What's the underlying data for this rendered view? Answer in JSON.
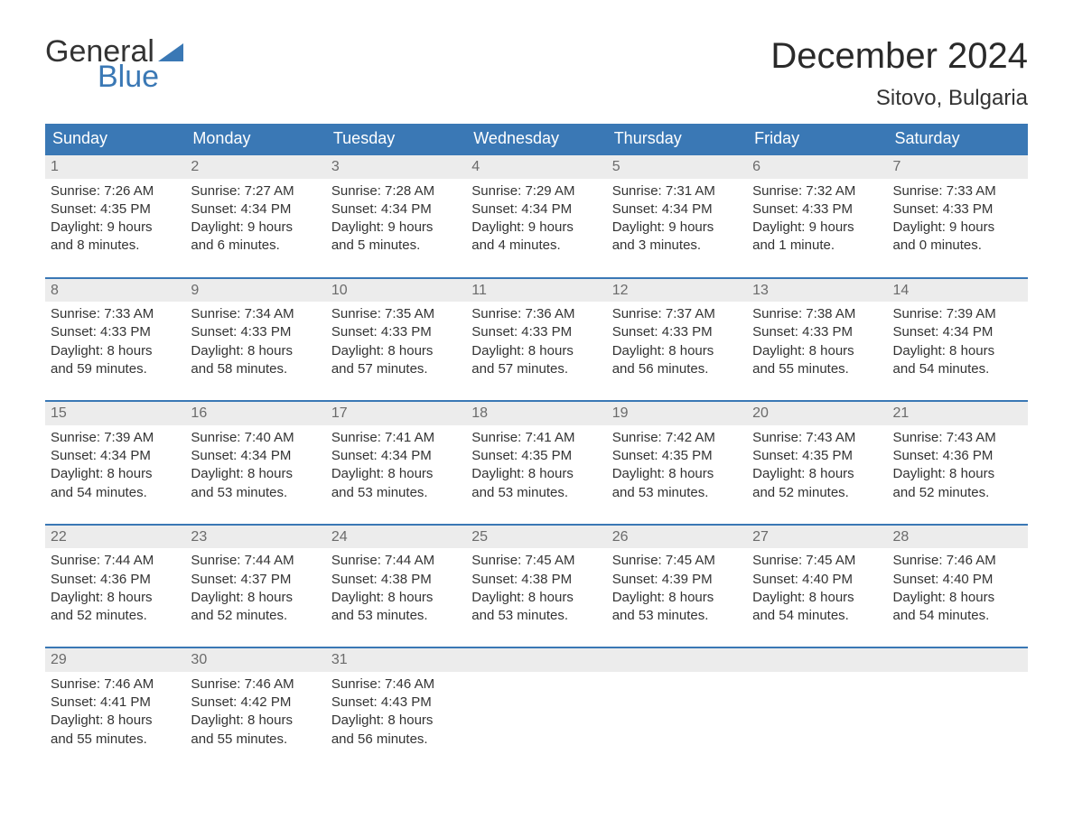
{
  "brand": {
    "word1": "General",
    "word2": "Blue",
    "triangle_color": "#3a78b5"
  },
  "title": "December 2024",
  "location": "Sitovo, Bulgaria",
  "colors": {
    "header_bg": "#3a78b5",
    "header_text": "#ffffff",
    "daynum_bg": "#ececec",
    "daynum_text": "#6b6b6b",
    "body_text": "#333333",
    "week_border": "#3a78b5"
  },
  "day_headers": [
    "Sunday",
    "Monday",
    "Tuesday",
    "Wednesday",
    "Thursday",
    "Friday",
    "Saturday"
  ],
  "weeks": [
    [
      {
        "n": "1",
        "sunrise": "Sunrise: 7:26 AM",
        "sunset": "Sunset: 4:35 PM",
        "d1": "Daylight: 9 hours",
        "d2": "and 8 minutes."
      },
      {
        "n": "2",
        "sunrise": "Sunrise: 7:27 AM",
        "sunset": "Sunset: 4:34 PM",
        "d1": "Daylight: 9 hours",
        "d2": "and 6 minutes."
      },
      {
        "n": "3",
        "sunrise": "Sunrise: 7:28 AM",
        "sunset": "Sunset: 4:34 PM",
        "d1": "Daylight: 9 hours",
        "d2": "and 5 minutes."
      },
      {
        "n": "4",
        "sunrise": "Sunrise: 7:29 AM",
        "sunset": "Sunset: 4:34 PM",
        "d1": "Daylight: 9 hours",
        "d2": "and 4 minutes."
      },
      {
        "n": "5",
        "sunrise": "Sunrise: 7:31 AM",
        "sunset": "Sunset: 4:34 PM",
        "d1": "Daylight: 9 hours",
        "d2": "and 3 minutes."
      },
      {
        "n": "6",
        "sunrise": "Sunrise: 7:32 AM",
        "sunset": "Sunset: 4:33 PM",
        "d1": "Daylight: 9 hours",
        "d2": "and 1 minute."
      },
      {
        "n": "7",
        "sunrise": "Sunrise: 7:33 AM",
        "sunset": "Sunset: 4:33 PM",
        "d1": "Daylight: 9 hours",
        "d2": "and 0 minutes."
      }
    ],
    [
      {
        "n": "8",
        "sunrise": "Sunrise: 7:33 AM",
        "sunset": "Sunset: 4:33 PM",
        "d1": "Daylight: 8 hours",
        "d2": "and 59 minutes."
      },
      {
        "n": "9",
        "sunrise": "Sunrise: 7:34 AM",
        "sunset": "Sunset: 4:33 PM",
        "d1": "Daylight: 8 hours",
        "d2": "and 58 minutes."
      },
      {
        "n": "10",
        "sunrise": "Sunrise: 7:35 AM",
        "sunset": "Sunset: 4:33 PM",
        "d1": "Daylight: 8 hours",
        "d2": "and 57 minutes."
      },
      {
        "n": "11",
        "sunrise": "Sunrise: 7:36 AM",
        "sunset": "Sunset: 4:33 PM",
        "d1": "Daylight: 8 hours",
        "d2": "and 57 minutes."
      },
      {
        "n": "12",
        "sunrise": "Sunrise: 7:37 AM",
        "sunset": "Sunset: 4:33 PM",
        "d1": "Daylight: 8 hours",
        "d2": "and 56 minutes."
      },
      {
        "n": "13",
        "sunrise": "Sunrise: 7:38 AM",
        "sunset": "Sunset: 4:33 PM",
        "d1": "Daylight: 8 hours",
        "d2": "and 55 minutes."
      },
      {
        "n": "14",
        "sunrise": "Sunrise: 7:39 AM",
        "sunset": "Sunset: 4:34 PM",
        "d1": "Daylight: 8 hours",
        "d2": "and 54 minutes."
      }
    ],
    [
      {
        "n": "15",
        "sunrise": "Sunrise: 7:39 AM",
        "sunset": "Sunset: 4:34 PM",
        "d1": "Daylight: 8 hours",
        "d2": "and 54 minutes."
      },
      {
        "n": "16",
        "sunrise": "Sunrise: 7:40 AM",
        "sunset": "Sunset: 4:34 PM",
        "d1": "Daylight: 8 hours",
        "d2": "and 53 minutes."
      },
      {
        "n": "17",
        "sunrise": "Sunrise: 7:41 AM",
        "sunset": "Sunset: 4:34 PM",
        "d1": "Daylight: 8 hours",
        "d2": "and 53 minutes."
      },
      {
        "n": "18",
        "sunrise": "Sunrise: 7:41 AM",
        "sunset": "Sunset: 4:35 PM",
        "d1": "Daylight: 8 hours",
        "d2": "and 53 minutes."
      },
      {
        "n": "19",
        "sunrise": "Sunrise: 7:42 AM",
        "sunset": "Sunset: 4:35 PM",
        "d1": "Daylight: 8 hours",
        "d2": "and 53 minutes."
      },
      {
        "n": "20",
        "sunrise": "Sunrise: 7:43 AM",
        "sunset": "Sunset: 4:35 PM",
        "d1": "Daylight: 8 hours",
        "d2": "and 52 minutes."
      },
      {
        "n": "21",
        "sunrise": "Sunrise: 7:43 AM",
        "sunset": "Sunset: 4:36 PM",
        "d1": "Daylight: 8 hours",
        "d2": "and 52 minutes."
      }
    ],
    [
      {
        "n": "22",
        "sunrise": "Sunrise: 7:44 AM",
        "sunset": "Sunset: 4:36 PM",
        "d1": "Daylight: 8 hours",
        "d2": "and 52 minutes."
      },
      {
        "n": "23",
        "sunrise": "Sunrise: 7:44 AM",
        "sunset": "Sunset: 4:37 PM",
        "d1": "Daylight: 8 hours",
        "d2": "and 52 minutes."
      },
      {
        "n": "24",
        "sunrise": "Sunrise: 7:44 AM",
        "sunset": "Sunset: 4:38 PM",
        "d1": "Daylight: 8 hours",
        "d2": "and 53 minutes."
      },
      {
        "n": "25",
        "sunrise": "Sunrise: 7:45 AM",
        "sunset": "Sunset: 4:38 PM",
        "d1": "Daylight: 8 hours",
        "d2": "and 53 minutes."
      },
      {
        "n": "26",
        "sunrise": "Sunrise: 7:45 AM",
        "sunset": "Sunset: 4:39 PM",
        "d1": "Daylight: 8 hours",
        "d2": "and 53 minutes."
      },
      {
        "n": "27",
        "sunrise": "Sunrise: 7:45 AM",
        "sunset": "Sunset: 4:40 PM",
        "d1": "Daylight: 8 hours",
        "d2": "and 54 minutes."
      },
      {
        "n": "28",
        "sunrise": "Sunrise: 7:46 AM",
        "sunset": "Sunset: 4:40 PM",
        "d1": "Daylight: 8 hours",
        "d2": "and 54 minutes."
      }
    ],
    [
      {
        "n": "29",
        "sunrise": "Sunrise: 7:46 AM",
        "sunset": "Sunset: 4:41 PM",
        "d1": "Daylight: 8 hours",
        "d2": "and 55 minutes."
      },
      {
        "n": "30",
        "sunrise": "Sunrise: 7:46 AM",
        "sunset": "Sunset: 4:42 PM",
        "d1": "Daylight: 8 hours",
        "d2": "and 55 minutes."
      },
      {
        "n": "31",
        "sunrise": "Sunrise: 7:46 AM",
        "sunset": "Sunset: 4:43 PM",
        "d1": "Daylight: 8 hours",
        "d2": "and 56 minutes."
      },
      {
        "empty": true
      },
      {
        "empty": true
      },
      {
        "empty": true
      },
      {
        "empty": true
      }
    ]
  ]
}
